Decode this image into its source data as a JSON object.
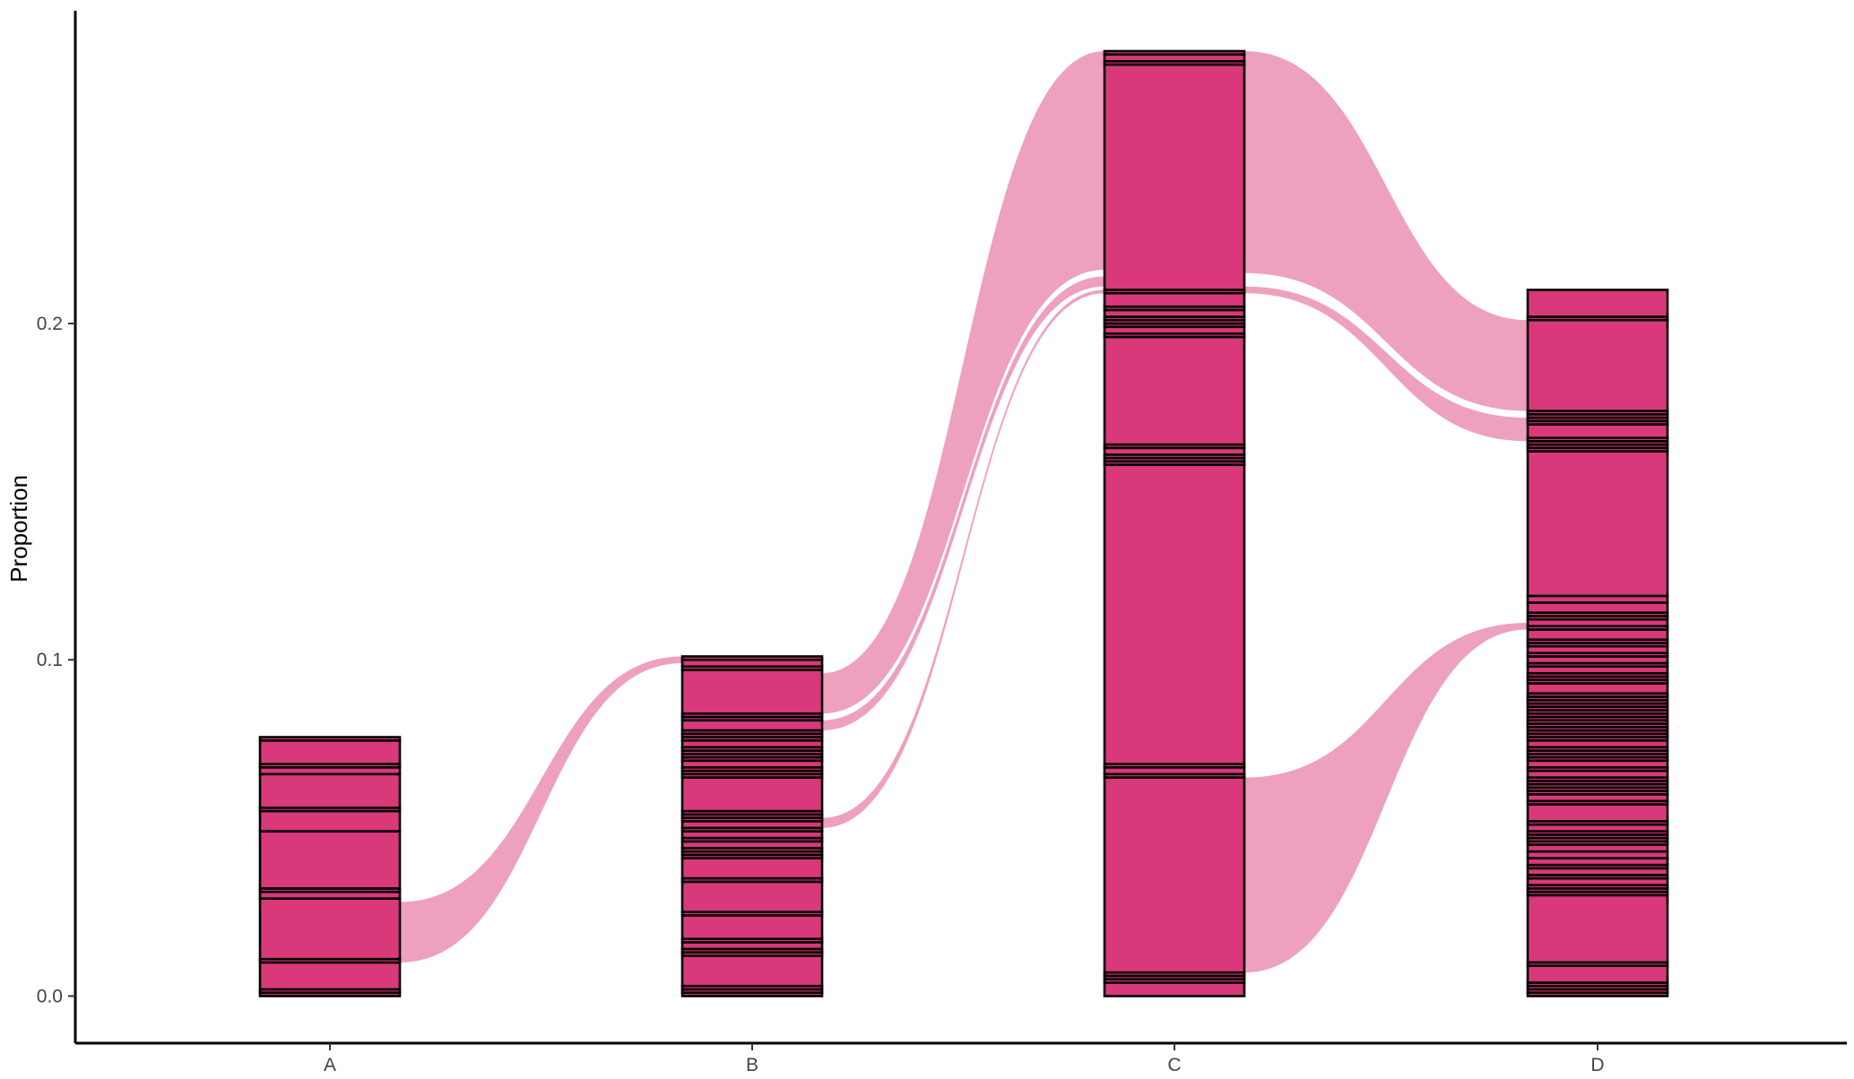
{
  "chart_data": {
    "type": "alluvial",
    "ylabel": "Proportion",
    "xlabel": "",
    "categories": [
      "A",
      "B",
      "C",
      "D"
    ],
    "yticks": [
      {
        "value": 0.0,
        "label": "0.0"
      },
      {
        "value": 0.1,
        "label": "0.1"
      },
      {
        "value": 0.2,
        "label": "0.2"
      }
    ],
    "ylim": [
      -0.014,
      0.293
    ],
    "colors": {
      "stratum_fill": "#d9387a",
      "flow_fill": "#eea0bf",
      "stroke": "#000000"
    },
    "strata": [
      {
        "axis": "A",
        "total": 0.077,
        "boundaries": [
          0.0,
          0.001,
          0.002,
          0.01,
          0.011,
          0.029,
          0.031,
          0.032,
          0.049,
          0.055,
          0.056,
          0.066,
          0.068,
          0.069,
          0.076,
          0.077
        ]
      },
      {
        "axis": "B",
        "total": 0.101,
        "boundaries": [
          0.0,
          0.001,
          0.002,
          0.003,
          0.012,
          0.013,
          0.014,
          0.016,
          0.017,
          0.024,
          0.025,
          0.034,
          0.035,
          0.041,
          0.042,
          0.043,
          0.044,
          0.046,
          0.047,
          0.049,
          0.05,
          0.052,
          0.053,
          0.054,
          0.055,
          0.065,
          0.066,
          0.067,
          0.068,
          0.07,
          0.071,
          0.072,
          0.073,
          0.074,
          0.076,
          0.077,
          0.078,
          0.079,
          0.082,
          0.083,
          0.084,
          0.097,
          0.098,
          0.1,
          0.101
        ]
      },
      {
        "axis": "C",
        "total": 0.281,
        "boundaries": [
          0.0,
          0.004,
          0.005,
          0.006,
          0.007,
          0.065,
          0.066,
          0.068,
          0.069,
          0.158,
          0.159,
          0.16,
          0.161,
          0.163,
          0.164,
          0.196,
          0.197,
          0.199,
          0.2,
          0.201,
          0.202,
          0.204,
          0.205,
          0.209,
          0.21,
          0.277,
          0.278,
          0.28,
          0.281
        ]
      },
      {
        "axis": "D",
        "total": 0.21,
        "boundaries": [
          0.0,
          0.001,
          0.002,
          0.003,
          0.004,
          0.009,
          0.01,
          0.03,
          0.031,
          0.032,
          0.033,
          0.035,
          0.036,
          0.038,
          0.039,
          0.041,
          0.043,
          0.045,
          0.046,
          0.047,
          0.048,
          0.049,
          0.051,
          0.052,
          0.057,
          0.058,
          0.06,
          0.061,
          0.062,
          0.063,
          0.064,
          0.065,
          0.067,
          0.068,
          0.07,
          0.071,
          0.072,
          0.073,
          0.074,
          0.076,
          0.077,
          0.078,
          0.079,
          0.08,
          0.081,
          0.082,
          0.083,
          0.084,
          0.085,
          0.086,
          0.087,
          0.088,
          0.089,
          0.09,
          0.093,
          0.094,
          0.095,
          0.096,
          0.098,
          0.099,
          0.101,
          0.102,
          0.104,
          0.105,
          0.106,
          0.109,
          0.11,
          0.112,
          0.113,
          0.114,
          0.117,
          0.119,
          0.162,
          0.163,
          0.164,
          0.165,
          0.166,
          0.17,
          0.171,
          0.172,
          0.173,
          0.174,
          0.201,
          0.202,
          0.21
        ]
      }
    ],
    "flows": [
      {
        "from": "A",
        "to": "B",
        "from_range": [
          0.01,
          0.028
        ],
        "to_range": [
          0.099,
          0.101
        ]
      },
      {
        "from": "B",
        "to": "C",
        "from_range": [
          0.084,
          0.096
        ],
        "to_range": [
          0.216,
          0.281
        ]
      },
      {
        "from": "B",
        "to": "C",
        "from_range": [
          0.079,
          0.082
        ],
        "to_range": [
          0.211,
          0.214
        ]
      },
      {
        "from": "B",
        "to": "C",
        "from_range": [
          0.05,
          0.053
        ],
        "to_range": [
          0.209,
          0.21
        ]
      },
      {
        "from": "C",
        "to": "D",
        "from_range": [
          0.215,
          0.281
        ],
        "to_range": [
          0.174,
          0.201
        ]
      },
      {
        "from": "C",
        "to": "D",
        "from_range": [
          0.209,
          0.211
        ],
        "to_range": [
          0.165,
          0.172
        ]
      },
      {
        "from": "C",
        "to": "D",
        "from_range": [
          0.007,
          0.065
        ],
        "to_range": [
          0.109,
          0.111
        ]
      }
    ]
  }
}
